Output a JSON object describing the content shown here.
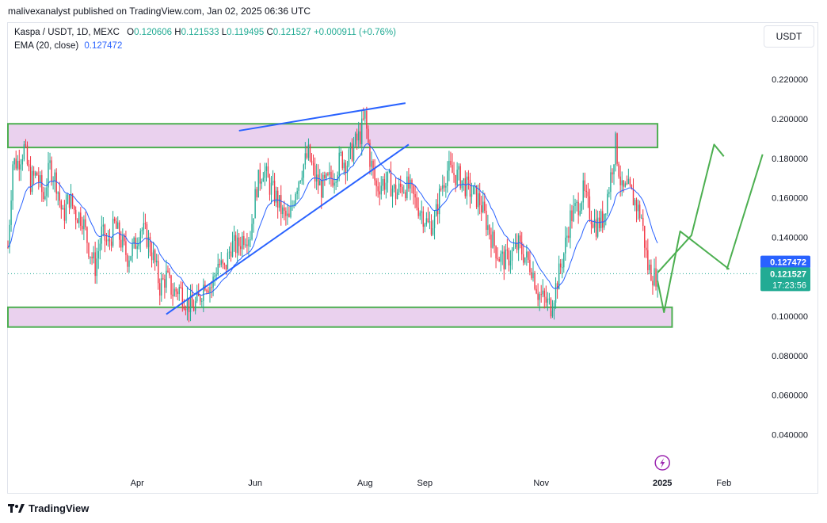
{
  "header": {
    "publish_line": "malivexanalyst published on TradingView.com, Jan 02, 2025 06:36 UTC"
  },
  "legend": {
    "symbol_line": "Kaspa / USDT, 1D, MEXC",
    "o_label": "O",
    "o_value": "0.120606",
    "h_label": "H",
    "h_value": "0.121533",
    "l_label": "L",
    "l_value": "0.119495",
    "c_label": "C",
    "c_value": "0.121527",
    "change": "+0.000911 (+0.76%)",
    "ema_label": "EMA (20, close)",
    "ema_value": "0.127472"
  },
  "currency_button": "USDT",
  "footer": {
    "brand": "TradingView"
  },
  "colors": {
    "up": "#22ab94",
    "down": "#f23645",
    "ema": "#2962ff",
    "trendline": "#2962ff",
    "zone_fill": "#e1bee7",
    "zone_border": "#4caf50",
    "projection": "#4caf50",
    "price_label_bg": "#22ab94",
    "ema_label_bg": "#2962ff",
    "lightning": "#9c27b0"
  },
  "chart_data": {
    "type": "candlestick",
    "price_axis": {
      "ticks": [
        "0.220000",
        "0.200000",
        "0.180000",
        "0.160000",
        "0.140000",
        "0.120000",
        "0.100000",
        "0.080000",
        "0.060000",
        "0.040000"
      ],
      "tick_values": [
        0.22,
        0.2,
        0.18,
        0.16,
        0.14,
        0.12,
        0.1,
        0.08,
        0.06,
        0.04
      ],
      "hidden_tick": "0.120000",
      "range": [
        0.022,
        0.242
      ]
    },
    "time_axis": {
      "labels": [
        "Apr",
        "Jun",
        "Aug",
        "Sep",
        "Nov",
        "2025",
        "Feb"
      ],
      "label_days": [
        80,
        153,
        221,
        258,
        330,
        405,
        443
      ],
      "bold": "2025",
      "range_days": [
        0,
        465
      ]
    },
    "price_labels": {
      "ema": "0.127472",
      "last": "0.121527",
      "countdown": "17:23:56"
    },
    "ema_period": 20,
    "last_close": 0.121527,
    "last_ema": 0.127472,
    "candles_start_day": 0,
    "candles_end_day": 402,
    "close_path": [
      [
        0,
        0.135
      ],
      [
        3,
        0.178
      ],
      [
        6,
        0.178
      ],
      [
        10,
        0.185
      ],
      [
        14,
        0.168
      ],
      [
        18,
        0.172
      ],
      [
        22,
        0.16
      ],
      [
        26,
        0.176
      ],
      [
        30,
        0.168
      ],
      [
        34,
        0.15
      ],
      [
        38,
        0.16
      ],
      [
        42,
        0.152
      ],
      [
        46,
        0.15
      ],
      [
        50,
        0.135
      ],
      [
        54,
        0.125
      ],
      [
        58,
        0.142
      ],
      [
        62,
        0.136
      ],
      [
        66,
        0.146
      ],
      [
        70,
        0.138
      ],
      [
        74,
        0.13
      ],
      [
        78,
        0.135
      ],
      [
        82,
        0.145
      ],
      [
        86,
        0.14
      ],
      [
        90,
        0.13
      ],
      [
        94,
        0.115
      ],
      [
        98,
        0.12
      ],
      [
        102,
        0.112
      ],
      [
        106,
        0.114
      ],
      [
        110,
        0.108
      ],
      [
        114,
        0.104
      ],
      [
        118,
        0.108
      ],
      [
        122,
        0.118
      ],
      [
        126,
        0.115
      ],
      [
        130,
        0.127
      ],
      [
        134,
        0.123
      ],
      [
        138,
        0.136
      ],
      [
        142,
        0.135
      ],
      [
        146,
        0.141
      ],
      [
        150,
        0.142
      ],
      [
        154,
        0.166
      ],
      [
        158,
        0.175
      ],
      [
        162,
        0.166
      ],
      [
        166,
        0.16
      ],
      [
        170,
        0.152
      ],
      [
        174,
        0.148
      ],
      [
        178,
        0.165
      ],
      [
        182,
        0.175
      ],
      [
        186,
        0.182
      ],
      [
        190,
        0.17
      ],
      [
        194,
        0.165
      ],
      [
        198,
        0.168
      ],
      [
        202,
        0.172
      ],
      [
        206,
        0.18
      ],
      [
        210,
        0.178
      ],
      [
        214,
        0.186
      ],
      [
        218,
        0.192
      ],
      [
        221,
        0.201
      ],
      [
        224,
        0.18
      ],
      [
        228,
        0.165
      ],
      [
        232,
        0.168
      ],
      [
        236,
        0.168
      ],
      [
        240,
        0.162
      ],
      [
        244,
        0.166
      ],
      [
        248,
        0.165
      ],
      [
        252,
        0.158
      ],
      [
        256,
        0.153
      ],
      [
        260,
        0.146
      ],
      [
        264,
        0.148
      ],
      [
        268,
        0.165
      ],
      [
        272,
        0.174
      ],
      [
        276,
        0.172
      ],
      [
        280,
        0.17
      ],
      [
        284,
        0.165
      ],
      [
        288,
        0.162
      ],
      [
        292,
        0.158
      ],
      [
        296,
        0.148
      ],
      [
        300,
        0.138
      ],
      [
        304,
        0.13
      ],
      [
        308,
        0.128
      ],
      [
        312,
        0.132
      ],
      [
        316,
        0.136
      ],
      [
        320,
        0.13
      ],
      [
        324,
        0.125
      ],
      [
        328,
        0.112
      ],
      [
        332,
        0.108
      ],
      [
        336,
        0.105
      ],
      [
        340,
        0.118
      ],
      [
        344,
        0.132
      ],
      [
        348,
        0.15
      ],
      [
        352,
        0.155
      ],
      [
        356,
        0.163
      ],
      [
        360,
        0.153
      ],
      [
        364,
        0.146
      ],
      [
        368,
        0.149
      ],
      [
        372,
        0.166
      ],
      [
        376,
        0.187
      ],
      [
        380,
        0.163
      ],
      [
        384,
        0.164
      ],
      [
        388,
        0.158
      ],
      [
        392,
        0.15
      ],
      [
        396,
        0.125
      ],
      [
        400,
        0.12
      ],
      [
        402,
        0.1215
      ]
    ],
    "horizontal_zones": [
      {
        "name": "resistance-zone",
        "from_day": 0,
        "to_day": 402,
        "low": 0.1855,
        "high": 0.1975
      },
      {
        "name": "support-zone",
        "from_day": 0,
        "to_day": 411,
        "low": 0.0945,
        "high": 0.1045
      }
    ],
    "trendlines": [
      {
        "name": "rising-support",
        "from": [
          98,
          0.101
        ],
        "to": [
          248,
          0.187
        ]
      },
      {
        "name": "rising-resistance",
        "from": [
          143,
          0.194
        ],
        "to": [
          246,
          0.208
        ]
      }
    ],
    "projections": [
      {
        "name": "projection-a",
        "points": [
          [
            402,
            0.118
          ],
          [
            406,
            0.102
          ],
          [
            416,
            0.143
          ],
          [
            446,
            0.124
          ],
          [
            445,
            0.124
          ],
          [
            467,
            0.182
          ]
        ]
      },
      {
        "name": "projection-b",
        "points": [
          [
            402,
            0.122
          ],
          [
            423,
            0.141
          ],
          [
            437,
            0.187
          ],
          [
            443,
            0.181
          ]
        ]
      }
    ]
  }
}
